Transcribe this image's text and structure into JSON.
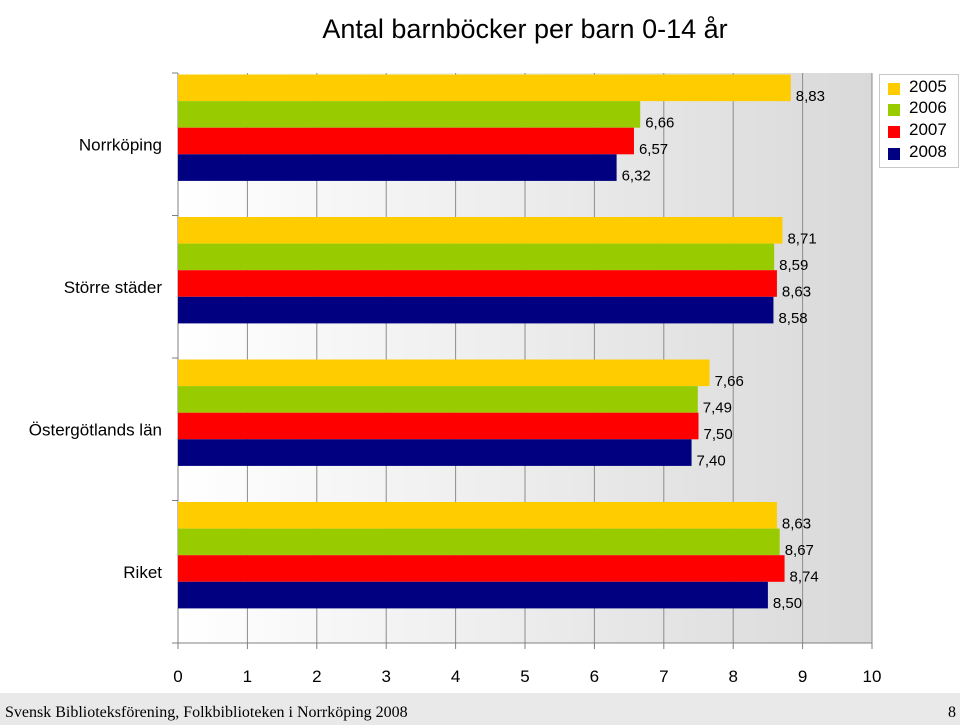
{
  "chart_data": {
    "type": "bar",
    "orientation": "horizontal",
    "title": "Antal barnböcker per barn 0-14 år",
    "categories": [
      "Norrköping",
      "Större städer",
      "Östergötlands län",
      "Riket"
    ],
    "series": [
      {
        "name": "2005",
        "color": "#ffcc00",
        "values": [
          8.83,
          8.71,
          7.66,
          8.63
        ],
        "labels": [
          "8,83",
          "8,71",
          "7,66",
          "8,63"
        ]
      },
      {
        "name": "2006",
        "color": "#99cc00",
        "values": [
          6.66,
          8.59,
          7.49,
          8.67
        ],
        "labels": [
          "6,66",
          "8,59",
          "7,49",
          "8,67"
        ]
      },
      {
        "name": "2007",
        "color": "#ff0000",
        "values": [
          6.57,
          8.63,
          7.5,
          8.74
        ],
        "labels": [
          "6,57",
          "8,63",
          "7,50",
          "8,74"
        ]
      },
      {
        "name": "2008",
        "color": "#000080",
        "values": [
          6.32,
          8.58,
          7.4,
          8.5
        ],
        "labels": [
          "6,32",
          "8,58",
          "7,40",
          "8,50"
        ]
      }
    ],
    "xlim": [
      0,
      10
    ],
    "xticks": [
      "0",
      "1",
      "2",
      "3",
      "4",
      "5",
      "6",
      "7",
      "8",
      "9",
      "10"
    ],
    "grid": true,
    "legend_position": "right"
  },
  "footer": {
    "text": "Svensk Biblioteksförening, Folkbiblioteken i Norrköping 2008",
    "page": "8"
  }
}
